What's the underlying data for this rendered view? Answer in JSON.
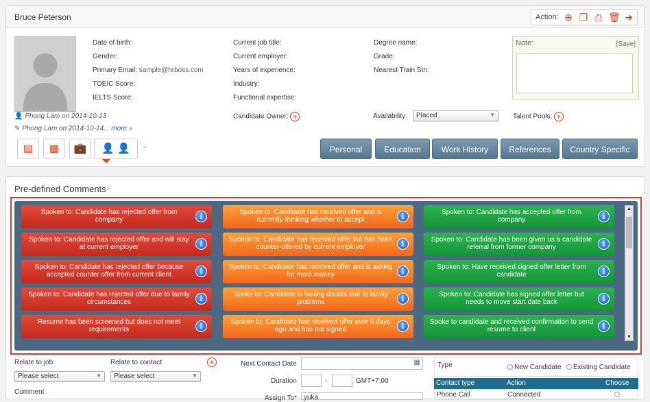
{
  "profile": {
    "name": "Bruce Peterson",
    "action_label": "Action:",
    "fields_col1": [
      {
        "label": "Date of birth:",
        "value": ""
      },
      {
        "label": "Gender:",
        "value": ""
      },
      {
        "label": "Primary Email:",
        "value": "sample@hrboss.com"
      },
      {
        "label": "TOEIC Score:",
        "value": ""
      },
      {
        "label": "IELTS Score:",
        "value": ""
      }
    ],
    "fields_col2": [
      {
        "label": "Current job title:",
        "value": ""
      },
      {
        "label": "Current employer:",
        "value": ""
      },
      {
        "label": "Years of experience:",
        "value": ""
      },
      {
        "label": "Industry:",
        "value": ""
      },
      {
        "label": "Functional expertise:",
        "value": ""
      }
    ],
    "fields_col3": [
      {
        "label": "Degree name:",
        "value": ""
      },
      {
        "label": "Grade:",
        "value": ""
      },
      {
        "label": "Nearest Train Stn:",
        "value": ""
      }
    ],
    "created_by": "Phong Lam on 2014-10-13",
    "edited_by": "Phong Lam on 2014-10-14...",
    "more_link": "more »",
    "candidate_owner_label": "Candidate Owner:",
    "availability_label": "Availability:",
    "availability_value": "Placed",
    "talent_pools_label": "Talent Pools:",
    "note_title": "Note:",
    "note_save": "[Save]",
    "tabs": [
      "Personal",
      "Education",
      "Work History",
      "References",
      "Country Specific"
    ]
  },
  "comments": {
    "title": "Pre-defined Comments",
    "red": [
      "Spoken to: Candidate has rejected offer from company",
      "Spoken to: Candidate has rejected offer and will stay at current employer",
      "Spoken to: Candidate has rejected offer because accepted counter offer from current client",
      "Spoken to: Candidate has rejected offer due to family circumstances",
      "Resume has been screened but does not meet requirements"
    ],
    "orange": [
      "Spoken to: Candidate has received offer and is currently thinking whether to accept",
      "Spoken to: Candidate has received offer but has been counter-offered by current employer",
      "Spoken to: Candidate has received offer and is asking for more money",
      "Spoke to: Candidate is having doubts due to family problems",
      "Spoken to: Candidate has received offer over 5 days ago and has not signed"
    ],
    "green": [
      "Spoken to: Candidate has accepted offer from company",
      "Spoken to: Candidate has been given us a candidate referral from former company",
      "Spoken to: Have received signed offer letter from candidate",
      "Spoken to: Candidate has signed offer letter but needs to move start date back",
      "Spoke to candidate and received confirmation to send resume to client"
    ]
  },
  "form": {
    "relate_job_label": "Relate to job",
    "relate_job_value": "Please select",
    "relate_contact_label": "Relate to contact",
    "relate_contact_value": "Please select",
    "comment_label": "Comment",
    "next_contact_label": "Next Contact Date",
    "duration_label": "Duration",
    "duration_sep": "-",
    "timezone": "GMT+7:00",
    "assign_to_label": "Assign To*",
    "assign_to_value": "yuka",
    "type_label": "Type",
    "type_opt1": "New Candidate",
    "type_opt2": "Existing Candidate",
    "col_contact_type": "Contact type",
    "col_action": "Action",
    "col_choose": "Choose",
    "row1_type": "Phone Call",
    "row1_action": "Connected"
  }
}
